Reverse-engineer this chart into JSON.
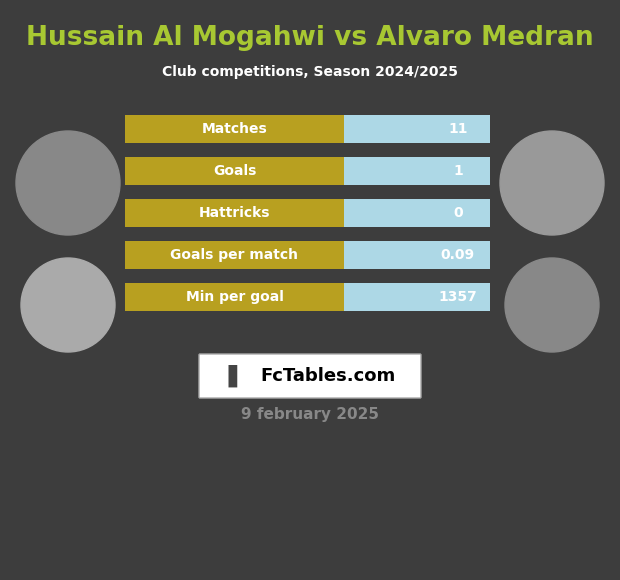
{
  "title": "Hussain Al Mogahwi vs Alvaro Medran",
  "subtitle": "Club competitions, Season 2024/2025",
  "date": "9 february 2025",
  "watermark": "FcTables.com",
  "background_color": "#3d3d3d",
  "title_color": "#a8c832",
  "subtitle_color": "#ffffff",
  "date_color": "#888888",
  "stats": [
    {
      "label": "Matches",
      "value": "11"
    },
    {
      "label": "Goals",
      "value": "1"
    },
    {
      "label": "Hattricks",
      "value": "0"
    },
    {
      "label": "Goals per match",
      "value": "0.09"
    },
    {
      "label": "Min per goal",
      "value": "1357"
    }
  ],
  "bar_left_color": "#b8a020",
  "bar_right_color": "#add8e6",
  "bar_text_color": "#ffffff",
  "fig_width": 6.2,
  "fig_height": 5.8,
  "dpi": 100
}
